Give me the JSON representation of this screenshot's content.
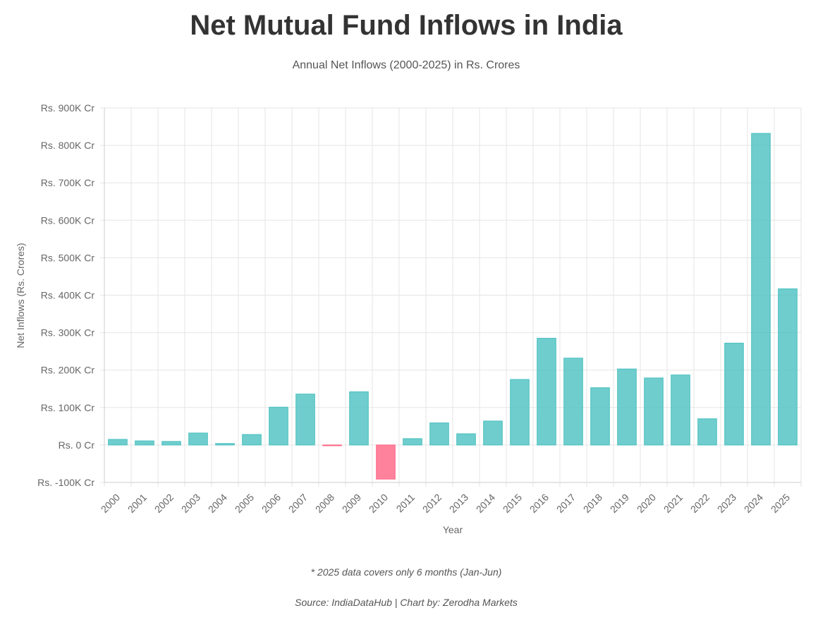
{
  "header": {
    "title": "Net Mutual Fund Inflows in India",
    "subtitle": "Annual Net Inflows (2000-2025) in Rs. Crores"
  },
  "footer": {
    "note": "* 2025 data covers only 6 months (Jan-Jun)",
    "source": "Source: IndiaDataHub | Chart by: Zerodha Markets"
  },
  "colors": {
    "positive": "#4bc0c0",
    "negative": "#ff6384",
    "grid": "#e5e5e5",
    "axis_text": "#666666"
  },
  "chart_data": {
    "type": "bar",
    "title": "Net Mutual Fund Inflows in India",
    "subtitle": "Annual Net Inflows (2000-2025) in Rs. Crores",
    "xlabel": "Year",
    "ylabel": "Net Inflows (Rs. Crores)",
    "ylim": [
      -100000,
      900000
    ],
    "yticks": [
      -100000,
      0,
      100000,
      200000,
      300000,
      400000,
      500000,
      600000,
      700000,
      800000,
      900000
    ],
    "ytick_labels": [
      "Rs. -100K Cr",
      "Rs. 0 Cr",
      "Rs. 100K Cr",
      "Rs. 200K Cr",
      "Rs. 300K Cr",
      "Rs. 400K Cr",
      "Rs. 500K Cr",
      "Rs. 600K Cr",
      "Rs. 700K Cr",
      "Rs. 800K Cr",
      "Rs. 900K Cr"
    ],
    "grid": true,
    "legend": "none",
    "categories": [
      "2000",
      "2001",
      "2002",
      "2003",
      "2004",
      "2005",
      "2006",
      "2007",
      "2008",
      "2009",
      "2010",
      "2011",
      "2012",
      "2013",
      "2014",
      "2015",
      "2016",
      "2017",
      "2018",
      "2019",
      "2020",
      "2021",
      "2022",
      "2023",
      "2024",
      "2025"
    ],
    "values": [
      15000,
      11000,
      9500,
      32000,
      4000,
      28000,
      101000,
      136000,
      -1000,
      142000,
      -91000,
      17000,
      59000,
      30000,
      64000,
      175000,
      285000,
      232000,
      153000,
      203000,
      179000,
      187000,
      70000,
      272000,
      832000,
      417000
    ]
  }
}
